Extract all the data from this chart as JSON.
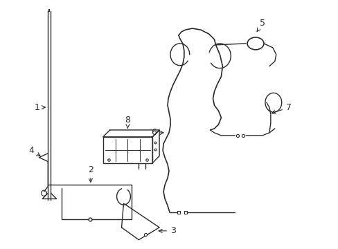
{
  "bg_color": "#ffffff",
  "line_color": "#2a2a2a",
  "line_width": 1.3,
  "figsize": [
    4.89,
    3.6
  ],
  "dpi": 100,
  "label_fontsize": 9
}
